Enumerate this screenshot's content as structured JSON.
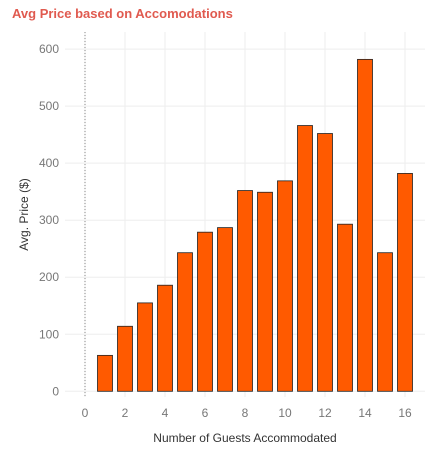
{
  "chart_data": {
    "type": "bar",
    "title": "Avg Price based on Accomodations",
    "xlabel": "Number of Guests Accommodated",
    "ylabel": "Avg. Price ($)",
    "x": [
      1,
      2,
      3,
      4,
      5,
      6,
      7,
      8,
      9,
      10,
      11,
      12,
      13,
      14,
      15,
      16
    ],
    "values": [
      63,
      114,
      155,
      186,
      243,
      279,
      287,
      352,
      349,
      369,
      466,
      452,
      293,
      582,
      243,
      382
    ],
    "x_ticks": [
      "0",
      "2",
      "4",
      "6",
      "8",
      "10",
      "12",
      "14",
      "16"
    ],
    "y_ticks": [
      "0",
      "100",
      "200",
      "300",
      "400",
      "500",
      "600"
    ],
    "xlim": [
      -1,
      17
    ],
    "ylim": [
      -10,
      630
    ],
    "grid": true,
    "zero_reference_line": "dotted vertical line at x = 0",
    "colors": {
      "bar_fill": "#ff5a00",
      "bar_stroke": "#222222",
      "title": "#e05a4f",
      "grid": "#eeeeee"
    }
  }
}
